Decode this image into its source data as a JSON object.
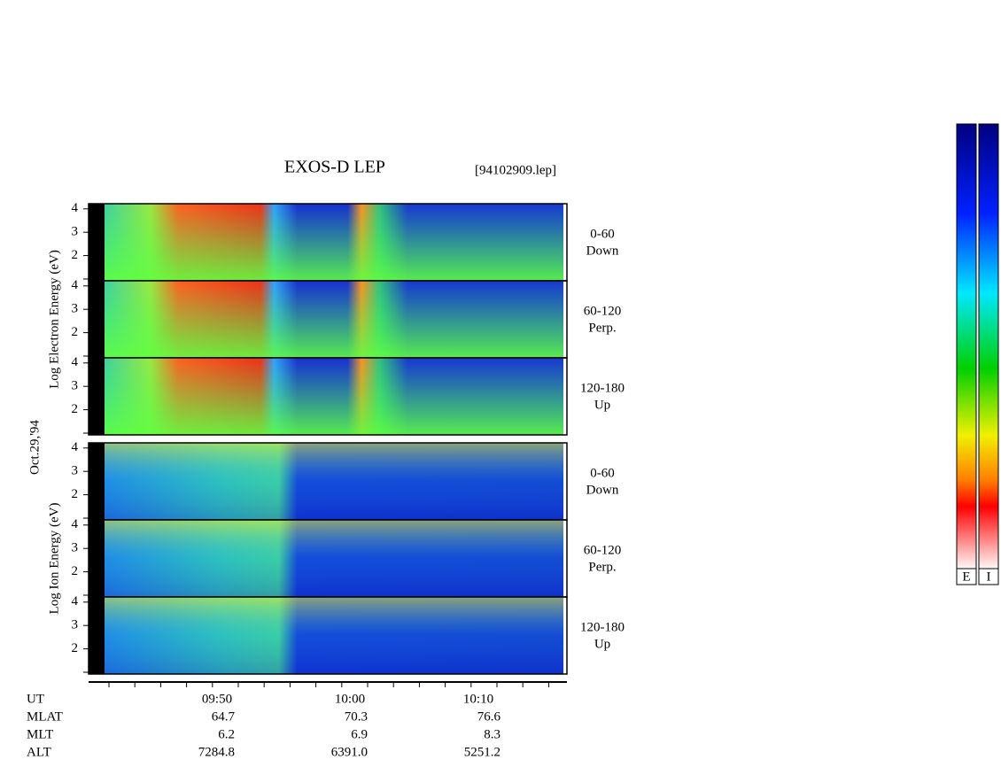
{
  "title": "EXOS-D LEP",
  "file": "[94102909.lep]",
  "date": "Oct.29,'94",
  "groups": [
    {
      "label": "Log Electron Energy (eV)",
      "yticks": [
        2,
        3,
        4
      ],
      "panels": [
        {
          "angle": "0-60",
          "direction": "Down"
        },
        {
          "angle": "60-120",
          "direction": "Perp."
        },
        {
          "angle": "120-180",
          "direction": "Up"
        }
      ]
    },
    {
      "label": "Log Ion Energy (eV)",
      "yticks": [
        2,
        3,
        4
      ],
      "panels": [
        {
          "angle": "0-60",
          "direction": "Down"
        },
        {
          "angle": "60-120",
          "direction": "Perp."
        },
        {
          "angle": "120-180",
          "direction": "Up"
        }
      ]
    }
  ],
  "orbit": [
    {
      "name": "UT",
      "values": [
        "09:50",
        "10:00",
        "10:10"
      ]
    },
    {
      "name": "MLAT",
      "values": [
        "64.7",
        "70.3",
        "76.6"
      ]
    },
    {
      "name": "MLT",
      "values": [
        "6.2",
        "6.9",
        "8.3"
      ]
    },
    {
      "name": "ALT",
      "values": [
        "7284.8",
        "6391.0",
        "5251.2"
      ]
    }
  ],
  "colorbars": [
    "E",
    "I"
  ]
}
